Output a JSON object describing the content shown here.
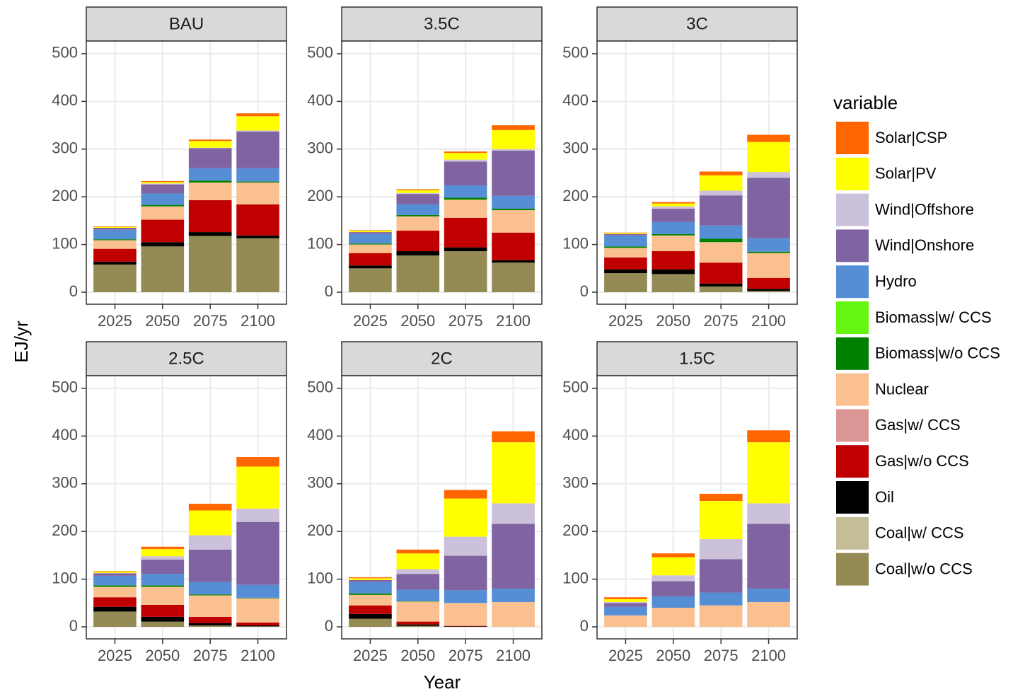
{
  "chart_data": {
    "type": "bar",
    "stacked": true,
    "facets": [
      "BAU",
      "3.5C",
      "3C",
      "2.5C",
      "2C",
      "1.5C"
    ],
    "categories": [
      "2025",
      "2050",
      "2075",
      "2100"
    ],
    "xlabel": "Year",
    "ylabel": "EJ/yr",
    "legend_title": "variable",
    "ylim": [
      -25.2,
      526.6
    ],
    "yticks": [
      0,
      100,
      200,
      300,
      400,
      500
    ],
    "grid": true,
    "series": [
      {
        "name": "Solar|CSP",
        "color": "#FF6600",
        "values": [
          [
            1,
            2,
            3,
            6
          ],
          [
            1,
            2,
            3,
            10
          ],
          [
            1,
            3,
            8,
            15
          ],
          [
            1,
            5,
            14,
            20
          ],
          [
            2,
            8,
            18,
            23
          ],
          [
            4,
            8,
            15,
            25
          ]
        ]
      },
      {
        "name": "Solar|PV",
        "color": "#FFFF00",
        "values": [
          [
            2,
            3,
            14,
            30
          ],
          [
            3,
            6,
            14,
            40
          ],
          [
            2,
            6,
            32,
            63
          ],
          [
            3,
            15,
            52,
            88
          ],
          [
            4,
            33,
            80,
            128
          ],
          [
            6,
            38,
            80,
            128
          ]
        ]
      },
      {
        "name": "Wind|Offshore",
        "color": "#CCC1DA",
        "values": [
          [
            0,
            2,
            1,
            2
          ],
          [
            0,
            2,
            4,
            3
          ],
          [
            0,
            5,
            10,
            12
          ],
          [
            1,
            7,
            30,
            28
          ],
          [
            0,
            10,
            40,
            43
          ],
          [
            2,
            12,
            42,
            43
          ]
        ]
      },
      {
        "name": "Wind|Onshore",
        "color": "#8064A2",
        "values": [
          [
            4,
            19,
            42,
            77
          ],
          [
            4,
            22,
            50,
            95
          ],
          [
            3,
            28,
            63,
            127
          ],
          [
            5,
            30,
            68,
            132
          ],
          [
            4,
            33,
            72,
            136
          ],
          [
            8,
            32,
            70,
            136
          ]
        ]
      },
      {
        "name": "Hydro",
        "color": "#558ED5",
        "values": [
          [
            20,
            24,
            26,
            28
          ],
          [
            20,
            22,
            26,
            27
          ],
          [
            23,
            25,
            28,
            28
          ],
          [
            20,
            24,
            26,
            27
          ],
          [
            24,
            24,
            27,
            28
          ],
          [
            18,
            24,
            27,
            28
          ]
        ]
      },
      {
        "name": "Biomass|w/ CCS",
        "color": "#66F411",
        "values": [
          [
            0,
            0,
            0,
            0
          ],
          [
            0,
            0,
            0,
            0
          ],
          [
            0,
            0,
            0,
            0
          ],
          [
            0,
            0,
            0,
            0
          ],
          [
            0,
            0,
            0,
            0
          ],
          [
            0,
            0,
            0,
            0
          ]
        ]
      },
      {
        "name": "Biomass|w/o CCS",
        "color": "#008000",
        "values": [
          [
            2,
            3,
            4,
            2
          ],
          [
            2,
            3,
            4,
            3
          ],
          [
            3,
            3,
            7,
            3
          ],
          [
            3,
            3,
            2,
            1
          ],
          [
            3,
            1,
            0,
            0
          ],
          [
            0,
            0,
            0,
            0
          ]
        ]
      },
      {
        "name": "Nuclear",
        "color": "#FAC090",
        "values": [
          [
            18,
            28,
            37,
            46
          ],
          [
            18,
            30,
            38,
            47
          ],
          [
            20,
            33,
            43,
            52
          ],
          [
            22,
            38,
            45,
            51
          ],
          [
            22,
            42,
            48,
            52
          ],
          [
            24,
            40,
            45,
            52
          ]
        ]
      },
      {
        "name": "Gas|w/ CCS",
        "color": "#DA9694",
        "values": [
          [
            0,
            0,
            0,
            0
          ],
          [
            0,
            0,
            0,
            0
          ],
          [
            0,
            0,
            0,
            0
          ],
          [
            0,
            0,
            0,
            0
          ],
          [
            0,
            0,
            0,
            0
          ],
          [
            0,
            0,
            0,
            0
          ]
        ]
      },
      {
        "name": "Gas|w/o CCS",
        "color": "#C00000",
        "values": [
          [
            27,
            47,
            67,
            65
          ],
          [
            26,
            43,
            62,
            58
          ],
          [
            25,
            38,
            44,
            23
          ],
          [
            20,
            25,
            13,
            6
          ],
          [
            18,
            6,
            1,
            0
          ],
          [
            0,
            0,
            0,
            0
          ]
        ]
      },
      {
        "name": "Oil",
        "color": "#000000",
        "values": [
          [
            6,
            9,
            8,
            6
          ],
          [
            6,
            9,
            8,
            5
          ],
          [
            8,
            10,
            6,
            4
          ],
          [
            10,
            10,
            5,
            2
          ],
          [
            10,
            3,
            1,
            0
          ],
          [
            0,
            0,
            0,
            0
          ]
        ]
      },
      {
        "name": "Coal|w/ CCS",
        "color": "#C4BD97",
        "values": [
          [
            0,
            0,
            0,
            0
          ],
          [
            0,
            0,
            0,
            0
          ],
          [
            0,
            0,
            0,
            0
          ],
          [
            0,
            0,
            0,
            0
          ],
          [
            0,
            0,
            0,
            0
          ],
          [
            0,
            0,
            0,
            0
          ]
        ]
      },
      {
        "name": "Coal|w/o CCS",
        "color": "#948A54",
        "values": [
          [
            58,
            96,
            118,
            113
          ],
          [
            50,
            77,
            86,
            62
          ],
          [
            40,
            38,
            12,
            3
          ],
          [
            32,
            11,
            3,
            1
          ],
          [
            17,
            2,
            0,
            0
          ],
          [
            0,
            0,
            0,
            0
          ]
        ]
      }
    ]
  }
}
